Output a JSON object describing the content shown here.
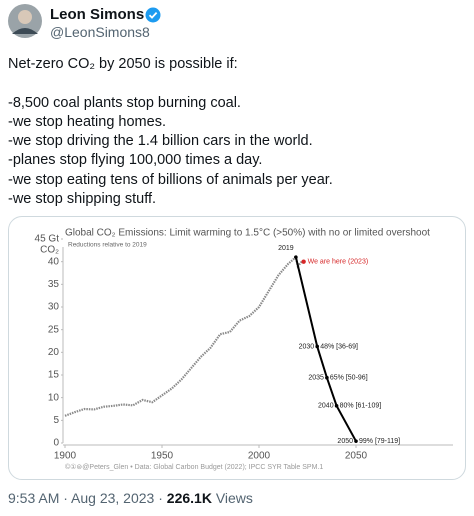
{
  "author": {
    "name": "Leon Simons",
    "handle": "@LeonSimons8"
  },
  "tweet": {
    "intro": "Net-zero CO₂ by 2050 is possible if:",
    "lines": [
      "-8,500 coal plants stop burning coal.",
      "-we stop heating homes.",
      "-we stop driving the 1.4 billion cars in the world.",
      "-planes stop flying 100,000 times a day.",
      "-we stop eating tens of billions of animals per year.",
      "-we stop shipping stuff."
    ]
  },
  "chart_data": {
    "type": "line",
    "title": "Global CO₂ Emissions: Limit warming to 1.5°C (>50%) with no or limited overshoot",
    "subtitle": "Reductions relative to 2019",
    "y_label": "CO₂",
    "xlim": [
      1900,
      2100
    ],
    "xticks": [
      1900,
      1950,
      2000,
      2050
    ],
    "ylim": [
      0,
      45
    ],
    "yticks": [
      0,
      5,
      10,
      15,
      20,
      25,
      30,
      35,
      40,
      {
        "value": 45,
        "label": "45 Gt"
      }
    ],
    "history": {
      "color": "#8a8a8a",
      "x": [
        1900,
        1905,
        1910,
        1915,
        1920,
        1925,
        1930,
        1935,
        1940,
        1945,
        1950,
        1955,
        1960,
        1965,
        1970,
        1975,
        1980,
        1985,
        1990,
        1995,
        2000,
        2005,
        2010,
        2015,
        2019,
        2020,
        2022
      ],
      "values": [
        6,
        6.8,
        7.5,
        7.4,
        8,
        8.2,
        8.5,
        8.3,
        9.5,
        9,
        10.5,
        12,
        14,
        16.5,
        19,
        21,
        24,
        24.5,
        27,
        28,
        30,
        33.5,
        37,
        39.5,
        41,
        39,
        40
      ]
    },
    "pathway": {
      "color": "#000000",
      "x": [
        2019,
        2030,
        2035,
        2040,
        2050
      ],
      "values": [
        41,
        21.3,
        14.4,
        8.2,
        0.4
      ],
      "reductions": [
        null,
        "48% [36-69]",
        "65% [50-96]",
        "80% [61-109]",
        "99% [79-119]"
      ]
    },
    "marker": {
      "x": 2023,
      "value": 40,
      "label": "We are here (2023)",
      "color": "#d62728"
    },
    "credit": "©①⊜@Peters_Glen • Data: Global Carbon Budget (2022); IPCC SYR Table SPM.1"
  },
  "footer": {
    "timestamp": "9:53 AM · Aug 23, 2023 ·",
    "views": "226.1K",
    "views_label": "Views"
  }
}
